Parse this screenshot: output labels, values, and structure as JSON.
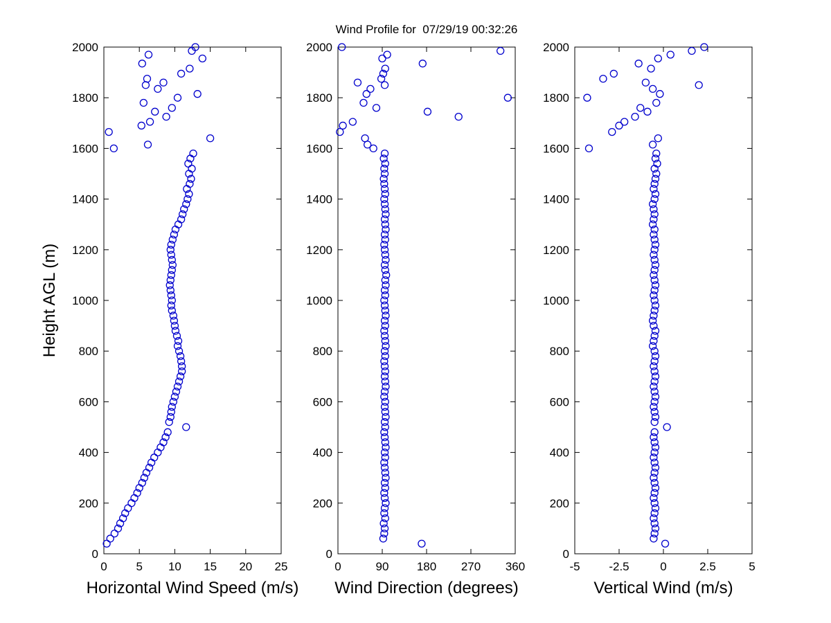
{
  "chart_data": {
    "type": "scatter",
    "title": "Wind Profile for  07/29/19 00:32:26",
    "ylabel": "Height AGL (m)",
    "ylim": [
      0,
      2000
    ],
    "yticks": [
      0,
      200,
      400,
      600,
      800,
      1000,
      1200,
      1400,
      1600,
      1800,
      2000
    ],
    "grid": false,
    "legend": "none",
    "marker": {
      "shape": "open-circle",
      "color": "#0000CD",
      "size": 5
    },
    "heights": [
      40,
      60,
      80,
      100,
      120,
      140,
      160,
      180,
      200,
      220,
      240,
      260,
      280,
      300,
      320,
      340,
      360,
      380,
      400,
      420,
      440,
      460,
      480,
      500,
      520,
      540,
      560,
      580,
      600,
      620,
      640,
      660,
      680,
      700,
      720,
      740,
      760,
      780,
      800,
      820,
      840,
      860,
      880,
      900,
      920,
      940,
      960,
      980,
      1000,
      1020,
      1040,
      1060,
      1080,
      1100,
      1120,
      1140,
      1160,
      1180,
      1200,
      1220,
      1240,
      1260,
      1280,
      1300,
      1320,
      1340,
      1360,
      1380,
      1400,
      1420,
      1440,
      1460,
      1480,
      1500,
      1520,
      1540,
      1560,
      1580,
      1600,
      1615,
      1640,
      1665,
      1690,
      1705,
      1725,
      1745,
      1760,
      1780,
      1800,
      1815,
      1835,
      1850,
      1860,
      1875,
      1895,
      1915,
      1935,
      1955,
      1970,
      1985,
      2000
    ],
    "subplots": [
      {
        "id": "horizontal-wind-speed",
        "xlabel": "Horizontal Wind Speed (m/s)",
        "xlim": [
          0,
          25
        ],
        "xticks": [
          0,
          5,
          10,
          15,
          20,
          25
        ],
        "values": [
          0.4,
          0.9,
          1.5,
          2.0,
          2.3,
          2.7,
          3.0,
          3.4,
          3.9,
          4.3,
          4.7,
          5.0,
          5.4,
          5.7,
          6.0,
          6.4,
          6.7,
          7.1,
          7.6,
          8.0,
          8.4,
          8.7,
          9.0,
          11.6,
          9.2,
          9.4,
          9.5,
          9.6,
          9.8,
          10.0,
          10.2,
          10.4,
          10.6,
          10.8,
          11.0,
          11.0,
          10.9,
          10.8,
          10.6,
          10.4,
          10.5,
          10.3,
          10.1,
          10.0,
          9.9,
          9.8,
          9.6,
          9.5,
          9.6,
          9.5,
          9.4,
          9.3,
          9.4,
          9.5,
          9.6,
          9.7,
          9.6,
          9.5,
          9.4,
          9.5,
          9.7,
          9.9,
          10.1,
          10.5,
          10.9,
          11.1,
          11.3,
          11.6,
          11.8,
          12.0,
          11.7,
          12.1,
          12.3,
          12.0,
          12.4,
          11.9,
          12.2,
          12.6,
          1.4,
          6.2,
          15.0,
          0.7,
          5.3,
          6.5,
          8.8,
          7.2,
          9.6,
          5.6,
          10.4,
          13.2,
          7.6,
          5.9,
          8.4,
          6.1,
          10.9,
          12.1,
          5.4,
          13.9,
          6.3,
          12.4,
          12.9
        ]
      },
      {
        "id": "wind-direction",
        "xlabel": "Wind Direction (degrees)",
        "xlim": [
          0,
          360
        ],
        "xticks": [
          0,
          90,
          180,
          270,
          360
        ],
        "values": [
          170,
          92,
          94,
          95,
          93,
          96,
          94,
          95,
          97,
          95,
          94,
          96,
          95,
          97,
          96,
          95,
          94,
          96,
          95,
          97,
          96,
          95,
          94,
          96,
          95,
          97,
          96,
          95,
          96,
          94,
          95,
          97,
          96,
          95,
          96,
          95,
          94,
          96,
          95,
          97,
          96,
          95,
          94,
          96,
          95,
          97,
          96,
          95,
          94,
          96,
          95,
          97,
          96,
          98,
          96,
          95,
          97,
          96,
          95,
          94,
          96,
          95,
          97,
          96,
          95,
          97,
          96,
          95,
          94,
          96,
          95,
          94,
          93,
          95,
          94,
          96,
          93,
          95,
          72,
          60,
          55,
          4,
          10,
          30,
          245,
          182,
          78,
          52,
          345,
          58,
          66,
          95,
          40,
          88,
          92,
          96,
          172,
          90,
          100,
          330,
          8
        ]
      },
      {
        "id": "vertical-wind",
        "xlabel": "Vertical Wind (m/s)",
        "xlim": [
          -5,
          5
        ],
        "xticks": [
          -5,
          -2.5,
          0,
          2.5,
          5
        ],
        "values": [
          0.1,
          -0.55,
          -0.5,
          -0.45,
          -0.5,
          -0.55,
          -0.5,
          -0.45,
          -0.5,
          -0.55,
          -0.5,
          -0.45,
          -0.5,
          -0.55,
          -0.5,
          -0.45,
          -0.5,
          -0.55,
          -0.5,
          -0.45,
          -0.5,
          -0.55,
          -0.5,
          0.2,
          -0.5,
          -0.45,
          -0.5,
          -0.55,
          -0.5,
          -0.45,
          -0.5,
          -0.55,
          -0.5,
          -0.45,
          -0.5,
          -0.55,
          -0.5,
          -0.45,
          -0.5,
          -0.6,
          -0.55,
          -0.5,
          -0.45,
          -0.55,
          -0.6,
          -0.55,
          -0.5,
          -0.45,
          -0.5,
          -0.55,
          -0.5,
          -0.45,
          -0.5,
          -0.55,
          -0.5,
          -0.45,
          -0.5,
          -0.55,
          -0.5,
          -0.45,
          -0.5,
          -0.55,
          -0.5,
          -0.6,
          -0.55,
          -0.5,
          -0.55,
          -0.6,
          -0.5,
          -0.45,
          -0.55,
          -0.5,
          -0.45,
          -0.4,
          -0.5,
          -0.35,
          -0.45,
          -0.4,
          -4.2,
          -0.6,
          -0.3,
          -2.9,
          -2.5,
          -2.2,
          -1.6,
          -0.9,
          -1.3,
          -0.4,
          -4.3,
          -0.2,
          -0.6,
          2.0,
          -1.0,
          -3.4,
          -2.8,
          -0.7,
          -1.4,
          -0.3,
          0.4,
          1.6,
          2.3
        ]
      }
    ]
  }
}
